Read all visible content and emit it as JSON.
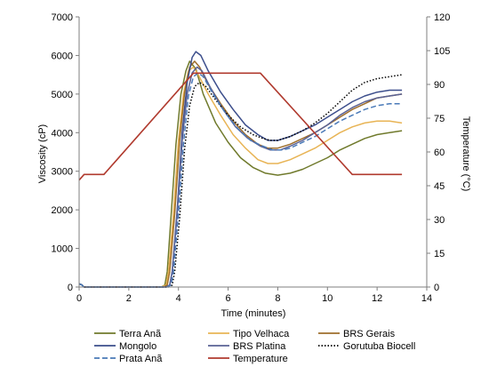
{
  "chart_data": {
    "type": "line",
    "title": "",
    "xlabel": "Time (minutes)",
    "ylabel": "Viscosity (cP)",
    "y2label": "Temperature (°C)",
    "xlim": [
      0,
      14
    ],
    "ylim": [
      0,
      7000
    ],
    "y2lim": [
      0,
      120
    ],
    "xticks": [
      "0",
      "2",
      "4",
      "6",
      "8",
      "10",
      "12",
      "14"
    ],
    "yticks": [
      "0",
      "1000",
      "2000",
      "3000",
      "4000",
      "5000",
      "6000",
      "7000"
    ],
    "y2ticks": [
      "0",
      "15",
      "30",
      "45",
      "60",
      "75",
      "90",
      "105",
      "120"
    ],
    "grid": false,
    "legend_position": "bottom",
    "series": [
      {
        "name": "Terra Anã",
        "axis": "left",
        "color": "#707a2c",
        "dash": "solid",
        "x": [
          0,
          0.1,
          0.2,
          1,
          2,
          3,
          3.3,
          3.45,
          3.55,
          3.7,
          3.9,
          4.1,
          4.3,
          4.45,
          4.7,
          5,
          5.5,
          6,
          6.5,
          7,
          7.5,
          8,
          8.5,
          9,
          9.5,
          10,
          10.5,
          11,
          11.5,
          12,
          12.5,
          13
        ],
        "y": [
          80,
          60,
          0,
          0,
          0,
          0,
          0,
          50,
          400,
          1800,
          3700,
          5000,
          5600,
          5850,
          5650,
          5000,
          4250,
          3750,
          3350,
          3100,
          2950,
          2900,
          2950,
          3050,
          3200,
          3350,
          3550,
          3700,
          3850,
          3950,
          4000,
          4050
        ]
      },
      {
        "name": "Tipo Velhaca",
        "axis": "left",
        "color": "#e8b455",
        "dash": "solid",
        "x": [
          0,
          0.1,
          0.2,
          1,
          2,
          3,
          3.3,
          3.5,
          3.6,
          3.8,
          4,
          4.2,
          4.4,
          4.6,
          4.8,
          5.2,
          5.7,
          6.2,
          6.7,
          7.2,
          7.6,
          8,
          8.5,
          9,
          9.5,
          10,
          10.5,
          11,
          11.5,
          12,
          12.5,
          13
        ],
        "y": [
          80,
          60,
          0,
          0,
          0,
          0,
          0,
          50,
          400,
          1900,
          3800,
          5000,
          5600,
          5700,
          5500,
          5000,
          4450,
          3950,
          3600,
          3300,
          3200,
          3200,
          3300,
          3450,
          3600,
          3800,
          4000,
          4150,
          4250,
          4300,
          4300,
          4250
        ]
      },
      {
        "name": "BRS Gerais",
        "axis": "left",
        "color": "#9e6e2c",
        "dash": "solid",
        "x": [
          0,
          0.1,
          0.2,
          1,
          2,
          3,
          3.4,
          3.55,
          3.65,
          3.85,
          4.05,
          4.25,
          4.45,
          4.65,
          4.85,
          5.2,
          5.7,
          6.2,
          6.7,
          7.2,
          7.6,
          8,
          8.5,
          9,
          9.5,
          10,
          10.5,
          11,
          11.5,
          12,
          12.5,
          13
        ],
        "y": [
          80,
          60,
          0,
          0,
          0,
          0,
          0,
          50,
          400,
          1900,
          3800,
          5050,
          5700,
          5850,
          5700,
          5250,
          4750,
          4300,
          3950,
          3700,
          3600,
          3600,
          3700,
          3850,
          4000,
          4200,
          4400,
          4600,
          4750,
          4900,
          4950,
          5000
        ]
      },
      {
        "name": "Mongolo",
        "axis": "left",
        "color": "#3c4e8c",
        "dash": "solid",
        "x": [
          0,
          0.1,
          0.2,
          1,
          2,
          3,
          3.5,
          3.65,
          3.75,
          3.95,
          4.15,
          4.35,
          4.55,
          4.7,
          4.9,
          5.2,
          5.7,
          6.2,
          6.7,
          7.2,
          7.6,
          8,
          8.5,
          9,
          9.5,
          10,
          10.5,
          11,
          11.5,
          12,
          12.5,
          13
        ],
        "y": [
          80,
          60,
          0,
          0,
          0,
          0,
          0,
          50,
          400,
          2000,
          4000,
          5300,
          5950,
          6100,
          6000,
          5600,
          5050,
          4600,
          4200,
          3950,
          3800,
          3800,
          3900,
          4050,
          4200,
          4400,
          4600,
          4800,
          4950,
          5050,
          5100,
          5100
        ]
      },
      {
        "name": "BRS Platina",
        "axis": "left",
        "color": "#5a6295",
        "dash": "solid",
        "x": [
          0,
          0.1,
          0.2,
          1,
          2,
          3,
          3.5,
          3.65,
          3.75,
          3.95,
          4.15,
          4.35,
          4.55,
          4.75,
          4.95,
          5.3,
          5.8,
          6.3,
          6.8,
          7.3,
          7.7,
          8.1,
          8.5,
          9,
          9.5,
          10,
          10.5,
          11,
          11.5,
          12,
          12.5,
          13
        ],
        "y": [
          80,
          60,
          0,
          0,
          0,
          0,
          0,
          50,
          400,
          1900,
          3800,
          5000,
          5550,
          5700,
          5600,
          5150,
          4600,
          4150,
          3850,
          3650,
          3550,
          3550,
          3650,
          3800,
          4000,
          4200,
          4450,
          4650,
          4800,
          4900,
          4950,
          5000
        ]
      },
      {
        "name": "Gorutuba Biocell",
        "axis": "left",
        "color": "#000000",
        "dash": "dotted",
        "x": [
          0,
          0.1,
          0.2,
          1,
          2,
          3,
          3.6,
          3.75,
          3.85,
          4.05,
          4.25,
          4.45,
          4.65,
          4.85,
          5.1,
          5.5,
          6,
          6.5,
          7,
          7.4,
          7.7,
          8,
          8.5,
          9,
          9.5,
          10,
          10.5,
          11,
          11.5,
          12,
          12.5,
          13
        ],
        "y": [
          80,
          60,
          0,
          0,
          0,
          0,
          0,
          50,
          400,
          1800,
          3600,
          4700,
          5200,
          5300,
          5200,
          4850,
          4450,
          4150,
          3950,
          3850,
          3800,
          3800,
          3900,
          4050,
          4250,
          4500,
          4800,
          5100,
          5300,
          5400,
          5450,
          5500
        ]
      },
      {
        "name": "Prata Anã",
        "axis": "left",
        "color": "#4a7ab8",
        "dash": "dashed",
        "x": [
          0,
          0.1,
          0.2,
          1,
          2,
          3,
          3.55,
          3.7,
          3.8,
          4,
          4.2,
          4.4,
          4.6,
          4.8,
          5,
          5.4,
          5.9,
          6.4,
          6.9,
          7.4,
          7.8,
          8.2,
          8.5,
          9,
          9.5,
          10,
          10.5,
          11,
          11.5,
          12,
          12.5,
          13
        ],
        "y": [
          80,
          60,
          0,
          0,
          0,
          0,
          0,
          50,
          400,
          1900,
          3700,
          4950,
          5450,
          5550,
          5450,
          5000,
          4500,
          4100,
          3800,
          3650,
          3550,
          3550,
          3600,
          3750,
          3900,
          4100,
          4300,
          4450,
          4600,
          4700,
          4750,
          4750
        ]
      },
      {
        "name": "Temperature",
        "axis": "right",
        "color": "#b03a2e",
        "dash": "solid",
        "x": [
          0,
          0.2,
          1,
          4.6,
          7.3,
          11,
          13
        ],
        "y": [
          47.5,
          50,
          50,
          95,
          95,
          50,
          50
        ]
      }
    ]
  }
}
